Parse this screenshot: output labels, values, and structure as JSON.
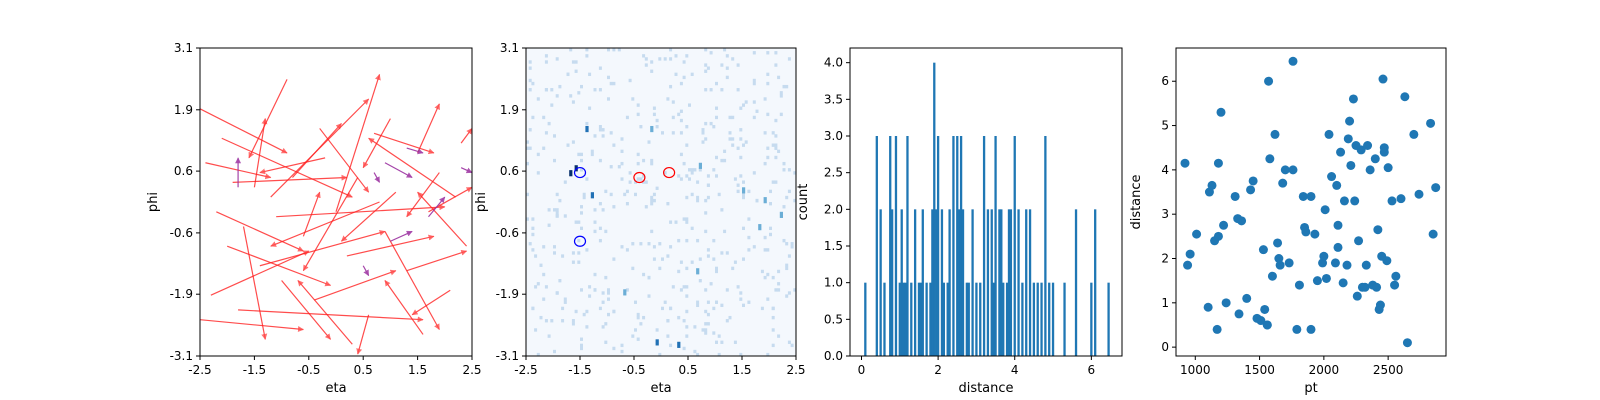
{
  "chart_data": [
    {
      "type": "vector-field",
      "xlabel": "eta",
      "ylabel": "phi",
      "xlim": [
        -2.5,
        2.5
      ],
      "ylim": [
        -3.14,
        3.14
      ],
      "xticks": [
        -2.5,
        -1.5,
        -0.5,
        0.5,
        1.5,
        2.5
      ],
      "xtick_labels": [
        "-2.5",
        "-1.5",
        "-0.5",
        "0.5",
        "1.5",
        "2.5"
      ],
      "yticks": [
        -3.14,
        -1.88,
        -0.63,
        0.63,
        1.88,
        3.14
      ],
      "ytick_labels": [
        "-3.1",
        "-1.9",
        "-0.6",
        "0.6",
        "1.9",
        "3.1"
      ],
      "colors": {
        "red": "#ff2020",
        "purple": "#9b30a0"
      },
      "arrows_red": [
        [
          -2.5,
          1.9,
          -0.9,
          1.0
        ],
        [
          -2.4,
          0.8,
          -1.2,
          0.5
        ],
        [
          -2.2,
          -0.2,
          -0.6,
          -1.0
        ],
        [
          -2.3,
          -1.9,
          -0.5,
          -1.0
        ],
        [
          -2.5,
          -2.4,
          -0.6,
          -2.6
        ],
        [
          -1.9,
          0.4,
          0.2,
          0.5
        ],
        [
          -1.7,
          -0.5,
          -1.3,
          -2.8
        ],
        [
          -1.5,
          0.3,
          -1.3,
          1.7
        ],
        [
          -1.4,
          -1.3,
          0.9,
          -0.6
        ],
        [
          -1.2,
          0.1,
          0.6,
          2.1
        ],
        [
          -1.0,
          -1.6,
          -0.1,
          -2.8
        ],
        [
          -0.8,
          0.5,
          0.1,
          1.6
        ],
        [
          -0.6,
          -0.7,
          -0.3,
          0.2
        ],
        [
          -0.4,
          -2.0,
          1.1,
          -1.4
        ],
        [
          -0.2,
          0.9,
          -1.4,
          0.6
        ],
        [
          0.0,
          -0.2,
          0.8,
          2.6
        ],
        [
          0.2,
          -1.1,
          1.8,
          -0.7
        ],
        [
          0.4,
          0.5,
          -0.6,
          -1.4
        ],
        [
          0.6,
          -2.3,
          0.4,
          -3.1
        ],
        [
          0.7,
          1.4,
          1.8,
          1.0
        ],
        [
          0.9,
          -0.6,
          1.9,
          -2.6
        ],
        [
          1.1,
          0.2,
          0.1,
          -0.8
        ],
        [
          1.3,
          -1.4,
          2.4,
          -1.0
        ],
        [
          1.5,
          1.0,
          1.9,
          2.0
        ],
        [
          1.7,
          -0.2,
          2.5,
          0.3
        ],
        [
          1.9,
          0.6,
          1.3,
          -0.3
        ],
        [
          2.1,
          -1.8,
          1.4,
          -2.3
        ],
        [
          2.3,
          1.2,
          2.5,
          1.5
        ],
        [
          2.4,
          -0.9,
          1.5,
          0.2
        ],
        [
          -2.1,
          1.3,
          0.3,
          0.1
        ],
        [
          -1.8,
          -2.2,
          1.6,
          -2.4
        ],
        [
          0.8,
          0.0,
          -1.2,
          -0.9
        ],
        [
          1.6,
          -2.7,
          0.9,
          -1.6
        ],
        [
          -0.3,
          1.5,
          0.6,
          0.2
        ],
        [
          2.2,
          0.1,
          0.6,
          1.3
        ],
        [
          -1.1,
          -0.3,
          2.0,
          -0.1
        ],
        [
          0.3,
          -2.9,
          -0.7,
          -1.6
        ],
        [
          -2.0,
          -0.9,
          -0.1,
          -1.7
        ],
        [
          1.0,
          1.7,
          0.5,
          0.7
        ],
        [
          -0.9,
          2.5,
          -1.6,
          0.9
        ]
      ],
      "arrows_purple": [
        [
          -1.8,
          0.3,
          -1.8,
          0.9
        ],
        [
          0.5,
          -1.3,
          0.6,
          -1.5
        ],
        [
          0.9,
          0.8,
          1.4,
          0.5
        ],
        [
          1.0,
          -0.8,
          1.4,
          -0.6
        ],
        [
          1.3,
          1.1,
          1.6,
          1.0
        ],
        [
          1.7,
          -0.3,
          2.0,
          0.1
        ],
        [
          2.3,
          0.7,
          2.5,
          0.6
        ],
        [
          0.7,
          0.6,
          0.8,
          0.4
        ]
      ]
    },
    {
      "type": "heatmap",
      "xlabel": "eta",
      "ylabel": "phi",
      "xlim": [
        -2.5,
        2.5
      ],
      "ylim": [
        -3.14,
        3.14
      ],
      "xticks": [
        -2.5,
        -1.5,
        -0.5,
        0.5,
        1.5,
        2.5
      ],
      "xtick_labels": [
        "-2.5",
        "-1.5",
        "-0.5",
        "0.5",
        "1.5",
        "2.5"
      ],
      "yticks": [
        -3.14,
        -1.88,
        -0.63,
        0.63,
        1.88,
        3.14
      ],
      "ytick_labels": [
        "-3.1",
        "-1.9",
        "-0.6",
        "0.6",
        "1.9",
        "3.1"
      ],
      "bins": [
        100,
        100
      ],
      "background": "#f4f8fd",
      "hot_cells": [
        [
          -1.6,
          0.75,
          3
        ],
        [
          -1.4,
          1.55,
          2
        ],
        [
          -1.3,
          0.2,
          2
        ],
        [
          1.8,
          -0.45,
          1
        ],
        [
          -0.1,
          -2.8,
          2
        ],
        [
          -0.7,
          -1.78,
          1
        ],
        [
          0.65,
          -1.35,
          1
        ],
        [
          -1.7,
          0.65,
          3
        ],
        [
          0.3,
          -2.85,
          2
        ],
        [
          1.5,
          0.3,
          1
        ],
        [
          -0.2,
          1.55,
          1
        ],
        [
          2.2,
          -0.2,
          1
        ],
        [
          0.7,
          0.8,
          1
        ],
        [
          1.9,
          0.1,
          1
        ]
      ],
      "circles_blue": [
        [
          -1.5,
          0.6
        ],
        [
          -1.5,
          -0.8
        ]
      ],
      "circles_red": [
        [
          -0.4,
          0.5
        ],
        [
          0.15,
          0.6
        ]
      ],
      "circle_colors": {
        "blue": "#0000ff",
        "red": "#ff0000"
      }
    },
    {
      "type": "bar",
      "xlabel": "distance",
      "ylabel": "count",
      "xlim": [
        -0.3,
        6.8
      ],
      "ylim": [
        0,
        4.2
      ],
      "xticks": [
        0,
        2,
        4,
        6
      ],
      "xtick_labels": [
        "0",
        "2",
        "4",
        "6"
      ],
      "yticks": [
        0.0,
        0.5,
        1.0,
        1.5,
        2.0,
        2.5,
        3.0,
        3.5,
        4.0
      ],
      "ytick_labels": [
        "0.0",
        "0.5",
        "1.0",
        "1.5",
        "2.0",
        "2.5",
        "3.0",
        "3.5",
        "4.0"
      ],
      "bar_width": 0.06,
      "color": "#1f77b4",
      "x": [
        0.1,
        0.4,
        0.5,
        0.6,
        0.75,
        0.8,
        0.9,
        1.0,
        1.05,
        1.1,
        1.15,
        1.2,
        1.3,
        1.4,
        1.5,
        1.55,
        1.6,
        1.7,
        1.8,
        1.85,
        1.9,
        1.95,
        2.0,
        2.1,
        2.15,
        2.25,
        2.3,
        2.4,
        2.5,
        2.55,
        2.6,
        2.65,
        2.75,
        2.8,
        2.9,
        3.0,
        3.1,
        3.2,
        3.3,
        3.4,
        3.45,
        3.5,
        3.6,
        3.65,
        3.7,
        3.8,
        3.85,
        3.9,
        4.0,
        4.1,
        4.2,
        4.3,
        4.4,
        4.5,
        4.6,
        4.7,
        4.8,
        4.9,
        5.0,
        5.3,
        5.6,
        6.0,
        6.1,
        6.45
      ],
      "values": [
        1,
        3,
        2,
        1,
        3,
        2,
        3,
        1,
        2,
        1,
        1,
        3,
        1,
        2,
        1,
        1,
        2,
        1,
        1,
        2,
        4,
        2,
        3,
        2,
        1,
        1,
        2,
        3,
        3,
        2,
        3,
        2,
        1,
        1,
        2,
        1,
        1,
        3,
        2,
        2,
        1,
        3,
        2,
        2,
        1,
        1,
        2,
        2,
        3,
        2,
        1,
        2,
        2,
        1,
        1,
        1,
        3,
        1,
        1,
        1,
        2,
        1,
        2,
        1
      ]
    },
    {
      "type": "scatter",
      "xlabel": "pt",
      "ylabel": "distance",
      "xlim": [
        850,
        2950
      ],
      "ylim": [
        -0.2,
        6.75
      ],
      "xticks": [
        1000,
        1500,
        2000,
        2500
      ],
      "xtick_labels": [
        "1000",
        "1500",
        "2000",
        "2500"
      ],
      "yticks": [
        0,
        1,
        2,
        3,
        4,
        5,
        6
      ],
      "ytick_labels": [
        "0",
        "1",
        "2",
        "3",
        "4",
        "5",
        "6"
      ],
      "color": "#1f77b4",
      "x": [
        920,
        940,
        960,
        1010,
        1100,
        1110,
        1130,
        1150,
        1170,
        1180,
        1220,
        1240,
        1310,
        1340,
        1360,
        1400,
        1430,
        1450,
        1480,
        1510,
        1530,
        1560,
        1570,
        1580,
        1600,
        1620,
        1640,
        1650,
        1680,
        1700,
        1730,
        1760,
        1790,
        1810,
        1840,
        1860,
        1900,
        1930,
        1950,
        1990,
        2010,
        2040,
        2060,
        2090,
        2100,
        2110,
        2130,
        2150,
        2160,
        2190,
        2200,
        2210,
        2230,
        2240,
        2260,
        2270,
        2290,
        2300,
        2320,
        2340,
        2360,
        2380,
        2400,
        2420,
        2430,
        2440,
        2450,
        2460,
        2470,
        2490,
        2500,
        2530,
        2560,
        2600,
        2630,
        2650,
        2700,
        2740,
        2830,
        2850,
        2870,
        1200,
        1760,
        1850,
        2020,
        2180,
        2330,
        2550,
        1330,
        1540,
        1900,
        2110,
        2410,
        1180,
        1660,
        2000,
        2250,
        1560,
        2470
      ],
      "y": [
        4.15,
        1.85,
        2.1,
        2.55,
        0.9,
        3.5,
        3.65,
        2.4,
        0.4,
        4.15,
        2.75,
        1.0,
        3.4,
        0.75,
        2.85,
        1.1,
        3.55,
        3.75,
        0.65,
        0.6,
        2.2,
        0.5,
        6.0,
        4.25,
        1.6,
        4.8,
        2.35,
        2.0,
        3.7,
        4.0,
        1.9,
        6.45,
        0.4,
        1.4,
        3.4,
        2.6,
        0.4,
        2.55,
        1.5,
        1.9,
        3.1,
        4.8,
        3.85,
        1.9,
        3.65,
        2.25,
        4.4,
        1.45,
        3.3,
        4.7,
        5.1,
        4.1,
        5.6,
        3.3,
        1.15,
        2.4,
        4.45,
        1.35,
        1.35,
        4.55,
        4.0,
        1.4,
        4.25,
        2.65,
        0.85,
        0.95,
        2.05,
        6.05,
        4.5,
        1.95,
        4.05,
        3.3,
        1.6,
        3.35,
        5.65,
        0.1,
        4.8,
        3.45,
        5.05,
        2.55,
        3.6,
        5.3,
        4.0,
        2.7,
        1.55,
        1.85,
        1.85,
        1.4,
        2.9,
        0.85,
        3.4,
        2.75,
        1.35,
        2.5,
        1.85,
        2.05,
        4.55,
        0.5,
        4.4
      ]
    }
  ]
}
